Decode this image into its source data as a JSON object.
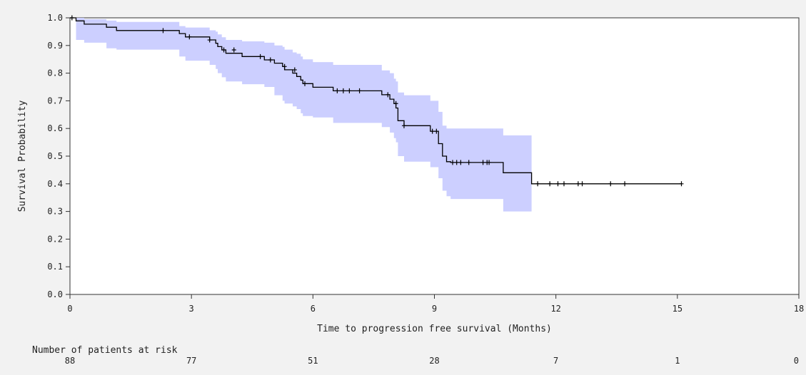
{
  "colors": {
    "background": "#f2f2f2",
    "plot_background": "#ffffff",
    "confidence_band": "#cccfff",
    "survival_line": "#000000",
    "axis": "#333333"
  },
  "chart_data": {
    "type": "line",
    "subtype": "kaplan-meier",
    "title": "",
    "xlabel": "Time to progression free survival (Months)",
    "ylabel": "Survival Probability",
    "xlim": [
      0,
      18
    ],
    "ylim": [
      0,
      1.0
    ],
    "xticks": [
      0,
      3,
      6,
      9,
      12,
      15,
      18
    ],
    "xtick_labels": [
      "0",
      "3",
      "6",
      "9",
      "12",
      "15",
      "18"
    ],
    "yticks": [
      0,
      0.1,
      0.2,
      0.3,
      0.4,
      0.5,
      0.6,
      0.7,
      0.8,
      0.9,
      1.0
    ],
    "ytick_labels": [
      "0.0",
      "0.1",
      "0.2",
      "0.3",
      "0.4",
      "0.5",
      "0.6",
      "0.7",
      "0.8",
      "0.9",
      "1.0"
    ],
    "grid": false,
    "legend": "none",
    "survival_steps": {
      "x": [
        0,
        0.15,
        0.35,
        0.9,
        1.15,
        2.7,
        2.85,
        3.45,
        3.6,
        3.65,
        3.75,
        3.85,
        4.25,
        4.8,
        5.05,
        5.25,
        5.3,
        5.5,
        5.6,
        5.7,
        5.75,
        6.0,
        6.5,
        7.7,
        7.9,
        8.0,
        8.05,
        8.1,
        8.25,
        8.9,
        9.1,
        9.2,
        9.3,
        9.4,
        10.7,
        11.4
      ],
      "y": [
        1.0,
        0.989,
        0.977,
        0.966,
        0.954,
        0.943,
        0.931,
        0.92,
        0.908,
        0.896,
        0.884,
        0.872,
        0.86,
        0.848,
        0.836,
        0.824,
        0.812,
        0.8,
        0.788,
        0.775,
        0.762,
        0.749,
        0.736,
        0.722,
        0.706,
        0.69,
        0.674,
        0.628,
        0.61,
        0.59,
        0.545,
        0.5,
        0.48,
        0.477,
        0.44,
        0.4
      ]
    },
    "ci_band": {
      "x": [
        0,
        0.15,
        0.35,
        0.9,
        1.15,
        2.7,
        2.85,
        3.45,
        3.6,
        3.65,
        3.75,
        3.85,
        4.25,
        4.8,
        5.05,
        5.25,
        5.3,
        5.5,
        5.6,
        5.7,
        5.75,
        6.0,
        6.5,
        7.7,
        7.9,
        8.0,
        8.05,
        8.1,
        8.25,
        8.9,
        9.1,
        9.2,
        9.3,
        9.4,
        10.7,
        11.4
      ],
      "lower": [
        1.0,
        0.92,
        0.91,
        0.89,
        0.885,
        0.86,
        0.845,
        0.83,
        0.815,
        0.8,
        0.785,
        0.77,
        0.76,
        0.75,
        0.72,
        0.7,
        0.69,
        0.68,
        0.67,
        0.655,
        0.645,
        0.64,
        0.62,
        0.605,
        0.585,
        0.565,
        0.55,
        0.5,
        0.48,
        0.46,
        0.42,
        0.375,
        0.355,
        0.345,
        0.3,
        0.3
      ],
      "upper": [
        1.0,
        1.0,
        0.995,
        0.99,
        0.985,
        0.97,
        0.965,
        0.955,
        0.95,
        0.94,
        0.93,
        0.92,
        0.915,
        0.91,
        0.9,
        0.895,
        0.885,
        0.875,
        0.87,
        0.86,
        0.85,
        0.84,
        0.83,
        0.81,
        0.8,
        0.78,
        0.77,
        0.73,
        0.72,
        0.7,
        0.66,
        0.61,
        0.6,
        0.6,
        0.575,
        0.575
      ]
    },
    "censor_marks": {
      "x": [
        0.05,
        2.3,
        2.95,
        3.45,
        3.8,
        4.05,
        4.7,
        4.95,
        5.3,
        5.55,
        5.8,
        6.6,
        6.75,
        6.9,
        7.15,
        7.85,
        8.05,
        8.25,
        8.95,
        9.05,
        9.45,
        9.55,
        9.65,
        9.85,
        10.2,
        10.3,
        10.35,
        11.55,
        11.85,
        12.05,
        12.2,
        12.55,
        12.65,
        13.35,
        13.7,
        15.1
      ],
      "y": [
        1.0,
        0.954,
        0.931,
        0.92,
        0.884,
        0.884,
        0.86,
        0.848,
        0.824,
        0.812,
        0.762,
        0.736,
        0.736,
        0.736,
        0.736,
        0.722,
        0.69,
        0.61,
        0.59,
        0.59,
        0.477,
        0.477,
        0.477,
        0.477,
        0.477,
        0.477,
        0.477,
        0.4,
        0.4,
        0.4,
        0.4,
        0.4,
        0.4,
        0.4,
        0.4,
        0.4
      ]
    },
    "final_x": 15.1
  },
  "risk_table": {
    "label": "Number of patients at risk",
    "times": [
      0,
      3,
      6,
      9,
      12,
      15,
      18
    ],
    "counts": [
      "88",
      "77",
      "51",
      "28",
      "7",
      "1",
      "0"
    ]
  }
}
